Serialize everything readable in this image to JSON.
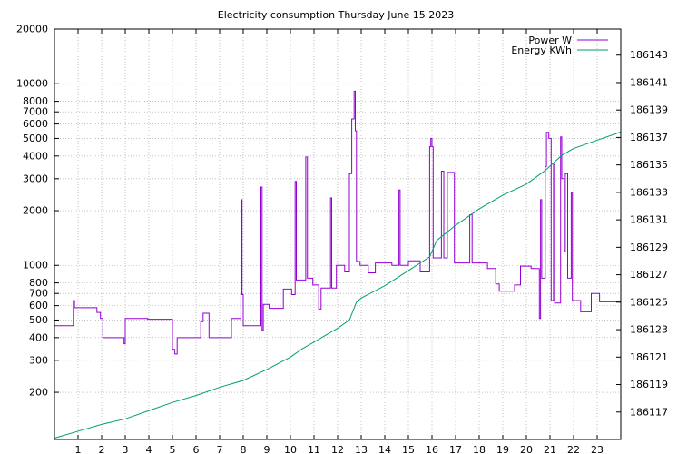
{
  "chart_data": {
    "type": "line",
    "title": "Electricity consumption Thursday June 15 2023",
    "grid": true,
    "legend_position": "top-right",
    "x_axis": {
      "range": [
        0,
        24
      ],
      "ticks": [
        1,
        2,
        3,
        4,
        5,
        6,
        7,
        8,
        9,
        10,
        11,
        12,
        13,
        14,
        15,
        16,
        17,
        18,
        19,
        20,
        21,
        22,
        23
      ],
      "tick_labels": [
        "1",
        "2",
        "3",
        "4",
        "5",
        "6",
        "7",
        "8",
        "9",
        "10",
        "11",
        "12",
        "13",
        "14",
        "15",
        "16",
        "17",
        "18",
        "19",
        "20",
        "21",
        "22",
        "23"
      ]
    },
    "y_axis_left": {
      "scale": "log",
      "range": [
        110,
        20000
      ],
      "ticks": [
        200,
        300,
        400,
        500,
        600,
        700,
        800,
        1000,
        2000,
        3000,
        4000,
        5000,
        6000,
        7000,
        8000,
        10000,
        20000
      ],
      "tick_labels": [
        "200",
        "300",
        "400",
        "500",
        "600",
        "700",
        "800",
        "1000",
        "2000",
        "3000",
        "4000",
        "5000",
        "6000",
        "7000",
        "8000",
        "10000",
        "20000"
      ]
    },
    "y_axis_right": {
      "scale": "linear",
      "range": [
        186115.0,
        186144.9
      ],
      "ticks": [
        186117,
        186119,
        186121,
        186123,
        186125,
        186127,
        186129,
        186131,
        186133,
        186135,
        186137,
        186139,
        186141,
        186143
      ],
      "tick_labels": [
        "186117",
        "186119",
        "186121",
        "186123",
        "186125",
        "186127",
        "186129",
        "186131",
        "186133",
        "186135",
        "186137",
        "186139",
        "186141",
        "186143"
      ]
    },
    "series": [
      {
        "name": "Power W",
        "axis": "left",
        "color": "#9400d3",
        "points": [
          [
            0.0,
            465
          ],
          [
            0.8,
            465
          ],
          [
            0.8,
            640
          ],
          [
            0.85,
            640
          ],
          [
            0.85,
            585
          ],
          [
            1.8,
            585
          ],
          [
            1.8,
            550
          ],
          [
            1.95,
            550
          ],
          [
            1.95,
            510
          ],
          [
            2.05,
            510
          ],
          [
            2.05,
            400
          ],
          [
            2.95,
            400
          ],
          [
            2.95,
            370
          ],
          [
            3.0,
            370
          ],
          [
            3.0,
            510
          ],
          [
            3.95,
            510
          ],
          [
            3.95,
            505
          ],
          [
            5.0,
            505
          ],
          [
            5.0,
            345
          ],
          [
            5.1,
            345
          ],
          [
            5.1,
            325
          ],
          [
            5.2,
            325
          ],
          [
            5.2,
            400
          ],
          [
            6.2,
            400
          ],
          [
            6.2,
            490
          ],
          [
            6.3,
            490
          ],
          [
            6.3,
            545
          ],
          [
            6.55,
            545
          ],
          [
            6.55,
            400
          ],
          [
            7.5,
            400
          ],
          [
            7.5,
            510
          ],
          [
            7.9,
            510
          ],
          [
            7.9,
            690
          ],
          [
            7.93,
            690
          ],
          [
            7.93,
            2300
          ],
          [
            7.95,
            2300
          ],
          [
            7.95,
            690
          ],
          [
            8.0,
            690
          ],
          [
            8.0,
            465
          ],
          [
            8.75,
            465
          ],
          [
            8.75,
            2700
          ],
          [
            8.8,
            2700
          ],
          [
            8.8,
            440
          ],
          [
            8.85,
            440
          ],
          [
            8.85,
            610
          ],
          [
            9.1,
            610
          ],
          [
            9.1,
            580
          ],
          [
            9.7,
            580
          ],
          [
            9.7,
            740
          ],
          [
            10.05,
            740
          ],
          [
            10.05,
            690
          ],
          [
            10.2,
            690
          ],
          [
            10.2,
            2900
          ],
          [
            10.25,
            2900
          ],
          [
            10.25,
            830
          ],
          [
            10.65,
            830
          ],
          [
            10.65,
            3950
          ],
          [
            10.72,
            3950
          ],
          [
            10.72,
            850
          ],
          [
            10.95,
            850
          ],
          [
            10.95,
            780
          ],
          [
            11.2,
            780
          ],
          [
            11.2,
            575
          ],
          [
            11.3,
            575
          ],
          [
            11.3,
            750
          ],
          [
            11.7,
            750
          ],
          [
            11.7,
            2350
          ],
          [
            11.75,
            2350
          ],
          [
            11.75,
            750
          ],
          [
            11.95,
            750
          ],
          [
            11.95,
            1000
          ],
          [
            12.3,
            1000
          ],
          [
            12.3,
            920
          ],
          [
            12.5,
            920
          ],
          [
            12.5,
            3200
          ],
          [
            12.6,
            3200
          ],
          [
            12.6,
            6400
          ],
          [
            12.7,
            6400
          ],
          [
            12.7,
            9100
          ],
          [
            12.75,
            9100
          ],
          [
            12.75,
            5500
          ],
          [
            12.8,
            5500
          ],
          [
            12.8,
            1050
          ],
          [
            12.95,
            1050
          ],
          [
            12.95,
            1000
          ],
          [
            13.3,
            1000
          ],
          [
            13.3,
            910
          ],
          [
            13.6,
            910
          ],
          [
            13.6,
            1030
          ],
          [
            14.3,
            1030
          ],
          [
            14.3,
            1000
          ],
          [
            14.6,
            1000
          ],
          [
            14.6,
            2600
          ],
          [
            14.65,
            2600
          ],
          [
            14.65,
            1000
          ],
          [
            15.0,
            1000
          ],
          [
            15.0,
            1060
          ],
          [
            15.5,
            1060
          ],
          [
            15.5,
            920
          ],
          [
            15.9,
            920
          ],
          [
            15.9,
            4500
          ],
          [
            15.95,
            4500
          ],
          [
            15.95,
            5000
          ],
          [
            16.0,
            5000
          ],
          [
            16.0,
            4500
          ],
          [
            16.05,
            4500
          ],
          [
            16.05,
            1100
          ],
          [
            16.4,
            1100
          ],
          [
            16.4,
            3300
          ],
          [
            16.5,
            3300
          ],
          [
            16.5,
            1100
          ],
          [
            16.65,
            1100
          ],
          [
            16.65,
            3250
          ],
          [
            16.95,
            3250
          ],
          [
            16.95,
            1030
          ],
          [
            17.6,
            1030
          ],
          [
            17.6,
            1900
          ],
          [
            17.7,
            1900
          ],
          [
            17.7,
            1030
          ],
          [
            18.35,
            1030
          ],
          [
            18.35,
            960
          ],
          [
            18.7,
            960
          ],
          [
            18.7,
            790
          ],
          [
            18.85,
            790
          ],
          [
            18.85,
            720
          ],
          [
            19.5,
            720
          ],
          [
            19.5,
            780
          ],
          [
            19.75,
            780
          ],
          [
            19.75,
            990
          ],
          [
            20.2,
            990
          ],
          [
            20.2,
            960
          ],
          [
            20.55,
            960
          ],
          [
            20.55,
            510
          ],
          [
            20.6,
            510
          ],
          [
            20.6,
            2300
          ],
          [
            20.65,
            2300
          ],
          [
            20.65,
            850
          ],
          [
            20.8,
            850
          ],
          [
            20.8,
            3500
          ],
          [
            20.85,
            3500
          ],
          [
            20.85,
            5400
          ],
          [
            20.95,
            5400
          ],
          [
            20.95,
            5000
          ],
          [
            21.05,
            5000
          ],
          [
            21.05,
            640
          ],
          [
            21.15,
            640
          ],
          [
            21.15,
            3600
          ],
          [
            21.2,
            3600
          ],
          [
            21.2,
            620
          ],
          [
            21.45,
            620
          ],
          [
            21.45,
            5100
          ],
          [
            21.5,
            5100
          ],
          [
            21.5,
            3000
          ],
          [
            21.6,
            3000
          ],
          [
            21.6,
            1200
          ],
          [
            21.65,
            1200
          ],
          [
            21.65,
            3200
          ],
          [
            21.75,
            3200
          ],
          [
            21.75,
            850
          ],
          [
            21.9,
            850
          ],
          [
            21.9,
            2500
          ],
          [
            21.95,
            2500
          ],
          [
            21.95,
            640
          ],
          [
            22.3,
            640
          ],
          [
            22.3,
            555
          ],
          [
            22.75,
            555
          ],
          [
            22.75,
            700
          ],
          [
            23.1,
            700
          ],
          [
            23.1,
            630
          ],
          [
            24.0,
            630
          ]
        ]
      },
      {
        "name": "Energy KWh",
        "axis": "right",
        "color": "#009e73",
        "points": [
          [
            0.0,
            186115.1
          ],
          [
            1.0,
            186115.6
          ],
          [
            2.0,
            186116.1
          ],
          [
            3.0,
            186116.5
          ],
          [
            4.0,
            186117.1
          ],
          [
            5.0,
            186117.7
          ],
          [
            6.0,
            186118.2
          ],
          [
            7.0,
            186118.8
          ],
          [
            8.0,
            186119.3
          ],
          [
            9.0,
            186120.1
          ],
          [
            10.0,
            186121.0
          ],
          [
            10.5,
            186121.6
          ],
          [
            11.0,
            186122.1
          ],
          [
            12.0,
            186123.1
          ],
          [
            12.5,
            186123.7
          ],
          [
            12.8,
            186125.0
          ],
          [
            13.0,
            186125.3
          ],
          [
            14.0,
            186126.2
          ],
          [
            15.0,
            186127.3
          ],
          [
            15.9,
            186128.3
          ],
          [
            16.2,
            186129.5
          ],
          [
            17.0,
            186130.6
          ],
          [
            18.0,
            186131.8
          ],
          [
            19.0,
            186132.8
          ],
          [
            20.0,
            186133.6
          ],
          [
            20.8,
            186134.6
          ],
          [
            21.5,
            186135.7
          ],
          [
            22.0,
            186136.2
          ],
          [
            23.0,
            186136.8
          ],
          [
            24.0,
            186137.4
          ]
        ]
      }
    ]
  }
}
